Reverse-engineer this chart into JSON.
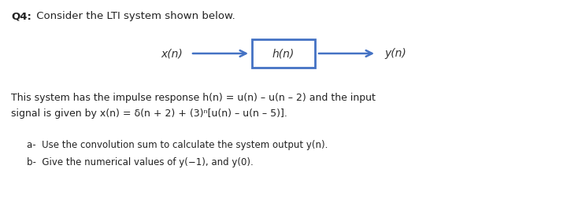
{
  "background_color": "#ffffff",
  "title_bold": "Q4:",
  "title_regular": " Consider the LTI system shown below.",
  "box_label": "h(n)",
  "input_label": "x(n)",
  "output_label": "y(n)",
  "box_color": "#4472c4",
  "box_facecolor": "#ffffff",
  "arrow_color": "#4472c4",
  "body_line1": "This system has the impulse response h(n) = u(n) – u(n – 2) and the input",
  "body_line2": "signal is given by x(n) = δ(n + 2) + (3)ⁿ[u(n) – u(n – 5)].",
  "item_a": "a-  Use the convolution sum to calculate the system output y(n).",
  "item_b": "b-  Give the numerical values of y(−1), and y(0).",
  "font_size_title": 9.5,
  "font_size_body": 9.0,
  "font_size_items": 8.5,
  "font_size_diagram": 10.0
}
